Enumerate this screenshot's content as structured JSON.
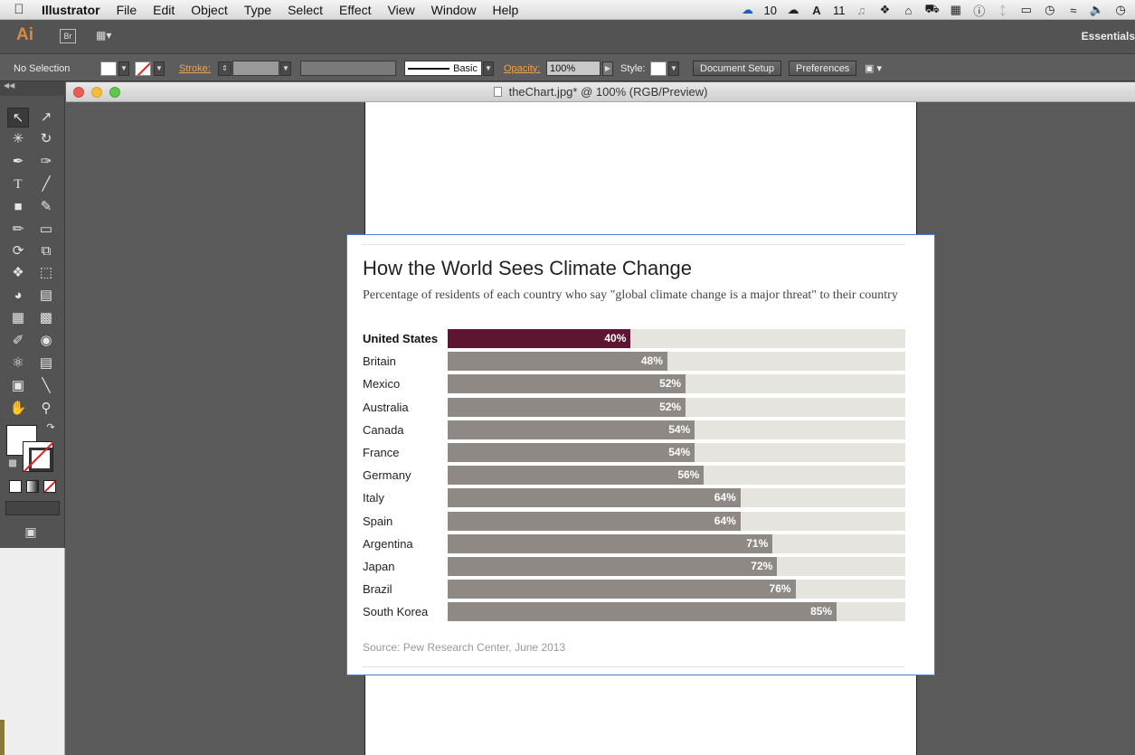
{
  "menubar": {
    "app_name": "Illustrator",
    "items": [
      "File",
      "Edit",
      "Object",
      "Type",
      "Select",
      "Effect",
      "View",
      "Window",
      "Help"
    ],
    "status": {
      "cc_count": "10",
      "adobe_count": "11"
    }
  },
  "appbar": {
    "logo": "Ai",
    "bridge": "Br",
    "workspace": "Essentials"
  },
  "controlbar": {
    "selection": "No Selection",
    "stroke_label": "Stroke:",
    "brush_label": "Basic",
    "opacity_label": "Opacity:",
    "opacity_value": "100%",
    "style_label": "Style:",
    "document_setup": "Document Setup",
    "preferences": "Preferences"
  },
  "document": {
    "title": "theChart.jpg* @ 100% (RGB/Preview)"
  },
  "chart_data": {
    "type": "bar",
    "orientation": "horizontal",
    "title": "How the World Sees Climate Change",
    "subtitle": "Percentage of residents of each country who say \"global climate change is a major threat\" to their country",
    "source": "Source: Pew Research Center, June 2013",
    "xlim": [
      0,
      100
    ],
    "highlight_color": "#5c1631",
    "bar_color": "#8f8986",
    "track_color": "#e6e4df",
    "categories": [
      "United States",
      "Britain",
      "Mexico",
      "Australia",
      "Canada",
      "France",
      "Germany",
      "Italy",
      "Spain",
      "Argentina",
      "Japan",
      "Brazil",
      "South Korea"
    ],
    "values": [
      40,
      48,
      52,
      52,
      54,
      54,
      56,
      64,
      64,
      71,
      72,
      76,
      85
    ],
    "labels": [
      "40%",
      "48%",
      "52%",
      "52%",
      "54%",
      "54%",
      "56%",
      "64%",
      "64%",
      "71%",
      "72%",
      "76%",
      "85%"
    ],
    "highlight_category": "United States"
  }
}
